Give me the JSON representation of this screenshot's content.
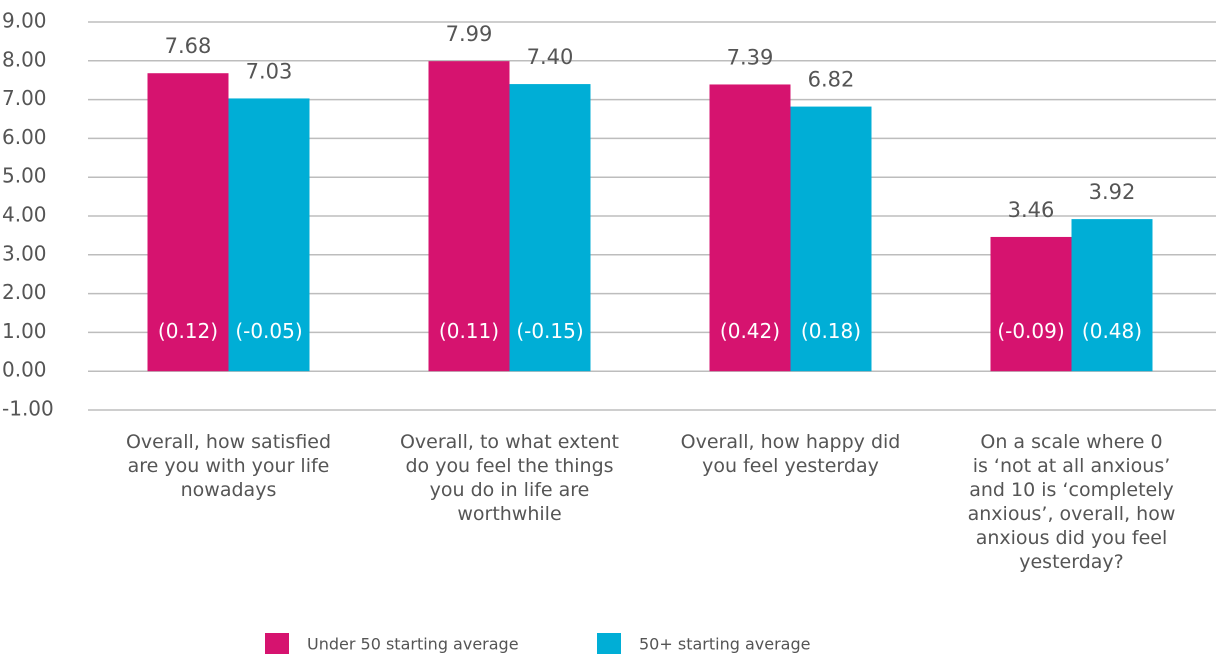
{
  "chart_data": {
    "type": "bar",
    "categories": [
      "Overall, how satisfied\nare you with your life\nnowadays",
      "Overall, to what extent\ndo you feel the things\nyou do in life are\nworthwhile",
      "Overall, how happy did\nyou feel yesterday",
      "On a scale where 0\nis ‘not at all anxious’\nand 10 is ‘completely\nanxious’, overall, how\nanxious did you feel\nyesterday?"
    ],
    "series": [
      {
        "name": "Under 50 starting average",
        "color": "#d6136f",
        "values": [
          7.68,
          7.99,
          7.39,
          3.46
        ],
        "value_labels": [
          "7.68",
          "7.99",
          "7.39",
          "3.46"
        ],
        "inner_labels": [
          "(0.12)",
          "(0.11)",
          "(0.42)",
          "(-0.09)"
        ]
      },
      {
        "name": "50+ starting average",
        "color": "#00aed6",
        "values": [
          7.03,
          7.4,
          6.82,
          3.92
        ],
        "value_labels": [
          "7.03",
          "7.40",
          "6.82",
          "3.92"
        ],
        "inner_labels": [
          "(-0.05)",
          "(-0.15)",
          "(0.18)",
          "(0.48)"
        ]
      }
    ],
    "ylim": [
      -1,
      9
    ],
    "yticks": [
      {
        "value": 9,
        "label": "9.00"
      },
      {
        "value": 8,
        "label": "8.00"
      },
      {
        "value": 7,
        "label": "7.00"
      },
      {
        "value": 6,
        "label": "6.00"
      },
      {
        "value": 5,
        "label": "5.00"
      },
      {
        "value": 4,
        "label": "4.00"
      },
      {
        "value": 3,
        "label": "3.00"
      },
      {
        "value": 2,
        "label": "2.00"
      },
      {
        "value": 1,
        "label": "1.00"
      },
      {
        "value": 0,
        "label": "0.00"
      },
      {
        "value": -1,
        "label": "-1.00"
      }
    ],
    "grid": true
  }
}
